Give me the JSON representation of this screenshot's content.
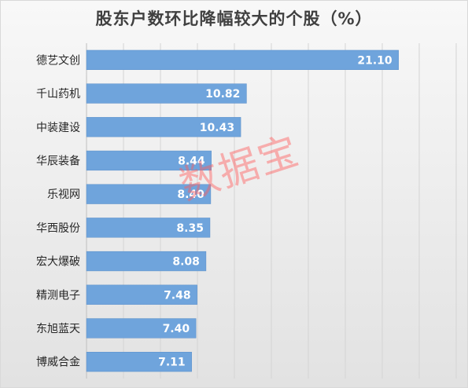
{
  "chart_data": {
    "type": "bar",
    "orientation": "horizontal",
    "title": "股东户数环比降幅较大的个股（%）",
    "categories": [
      "德艺文创",
      "千山药机",
      "中装建设",
      "华辰装备",
      "乐视网",
      "华西股份",
      "宏大爆破",
      "精测电子",
      "东旭蓝天",
      "博威合金"
    ],
    "values": [
      21.1,
      10.82,
      10.43,
      8.44,
      8.4,
      8.35,
      8.08,
      7.48,
      7.4,
      7.11
    ],
    "value_labels": [
      "21.10",
      "10.82",
      "10.43",
      "8.44",
      "8.40",
      "8.35",
      "8.08",
      "7.48",
      "7.40",
      "7.11"
    ],
    "xlim": [
      0,
      25
    ],
    "x_grid_step": 2.5,
    "grid": true,
    "bar_color": "#6fa4dc"
  },
  "watermark": "数据宝"
}
